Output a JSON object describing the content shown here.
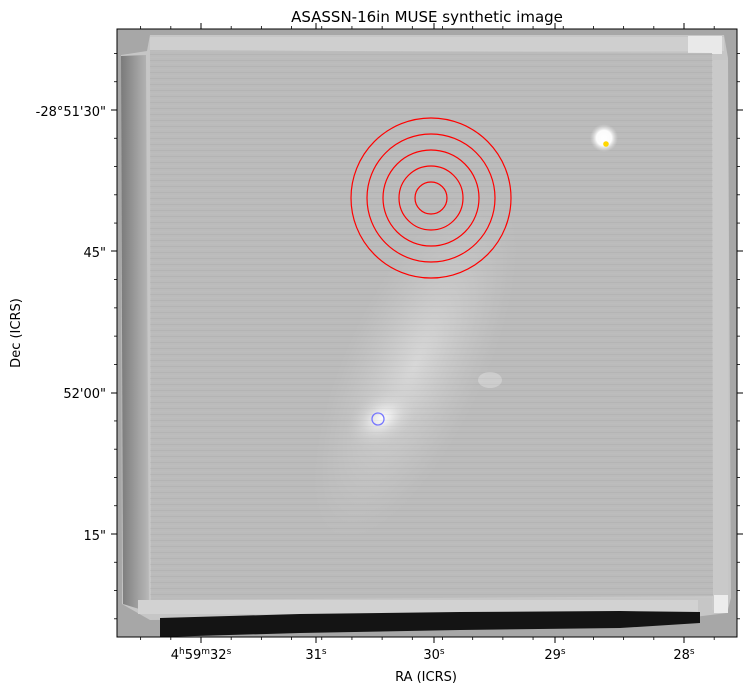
{
  "chart_data": {
    "type": "image",
    "title": "ASASSN-16in MUSE synthetic image",
    "xlabel": "RA (ICRS)",
    "ylabel": "Dec (ICRS)",
    "colormap": "grayscale",
    "x_ticks": [
      {
        "label": "4h59m32s",
        "parts": {
          "h": "4",
          "hu": "h",
          "m": "59",
          "mu": "m",
          "s": "32",
          "su": "s"
        }
      },
      {
        "label": "31s",
        "parts": {
          "s": "31",
          "su": "s"
        }
      },
      {
        "label": "30s",
        "parts": {
          "s": "30",
          "su": "s"
        }
      },
      {
        "label": "29s",
        "parts": {
          "s": "29",
          "su": "s"
        }
      },
      {
        "label": "28s",
        "parts": {
          "s": "28",
          "su": "s"
        }
      }
    ],
    "y_ticks": [
      {
        "label": "-28°51'30\""
      },
      {
        "label": "45\""
      },
      {
        "label": "52'00\""
      },
      {
        "label": "15\""
      }
    ],
    "markers": [
      {
        "name": "transient position",
        "shape": "concentric-circles",
        "count": 5,
        "color": "#ff0000"
      },
      {
        "name": "host galaxy nucleus",
        "shape": "circle",
        "color": "#7777ff"
      },
      {
        "name": "star",
        "shape": "dot",
        "color": "#ffd700"
      }
    ],
    "grid": false
  }
}
